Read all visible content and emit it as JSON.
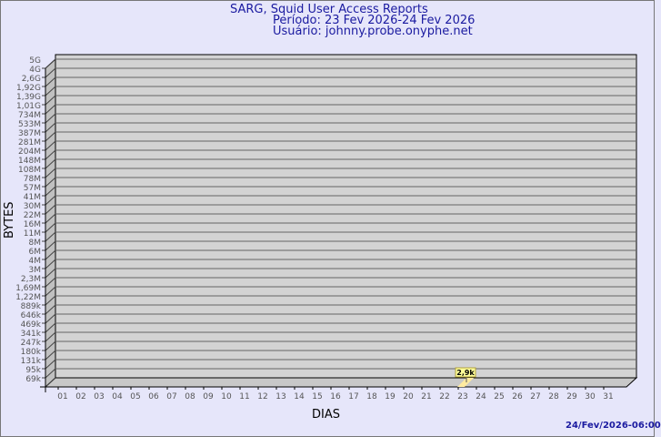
{
  "header": {
    "title": "SARG, Squid User Access Reports",
    "period": "Período: 23 Fev 2026-24 Fev 2026",
    "user": "Usuário: johnny.probe.onyphe.net"
  },
  "footer": {
    "timestamp": "24/Fev/2026-06:00"
  },
  "colors": {
    "background": "#e6e6fa",
    "plot": "#d3d3d3",
    "bar": "#ffeaa0",
    "text": "#1a1aa0",
    "label_box": "#ffff99"
  },
  "chart_data": {
    "type": "bar",
    "title": "SARG, Squid User Access Reports",
    "xlabel": "DIAS",
    "ylabel": "BYTES",
    "y_scale": "log",
    "grid": true,
    "yticks": [
      "5G",
      "4G",
      "2,6G",
      "1,92G",
      "1,39G",
      "1,01G",
      "734M",
      "533M",
      "387M",
      "281M",
      "204M",
      "148M",
      "108M",
      "78M",
      "57M",
      "41M",
      "30M",
      "22M",
      "16M",
      "11M",
      "8M",
      "6M",
      "4M",
      "3M",
      "2,3M",
      "1,69M",
      "1,22M",
      "889k",
      "646k",
      "469k",
      "341k",
      "247k",
      "180k",
      "131k",
      "95k",
      "69k"
    ],
    "categories": [
      "01",
      "02",
      "03",
      "04",
      "05",
      "06",
      "07",
      "08",
      "09",
      "10",
      "11",
      "12",
      "13",
      "14",
      "15",
      "16",
      "17",
      "18",
      "19",
      "20",
      "21",
      "22",
      "23",
      "24",
      "25",
      "26",
      "27",
      "28",
      "29",
      "30",
      "31"
    ],
    "values": [
      null,
      null,
      null,
      null,
      null,
      null,
      null,
      null,
      null,
      null,
      null,
      null,
      null,
      null,
      null,
      null,
      null,
      null,
      null,
      null,
      null,
      null,
      2900,
      null,
      null,
      null,
      null,
      null,
      null,
      null,
      null
    ],
    "data_labels": {
      "23": "2,9k"
    }
  }
}
